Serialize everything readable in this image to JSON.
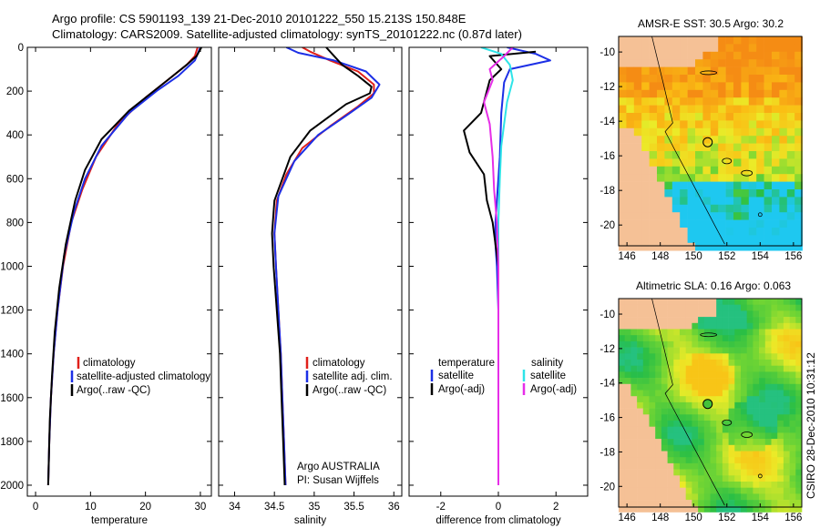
{
  "header": {
    "line1": "Argo profile: CS 5901193_139 21-Dec-2010 20101222_550 15.213S 150.848E",
    "line2": "Climatology: CARS2009. Satellite-adjusted climatology: synTS_20101222.nc (0.87d later)"
  },
  "side_label": "CSIRO 28-Dec-2010 10:31:12",
  "colors": {
    "climatology": "#e0201a",
    "satellite": "#1c2fe6",
    "argo": "#000000",
    "satellite_salinity": "#2ee4e8",
    "argo_adj": "#e62ee8",
    "land": "#f5c196"
  },
  "chart_data": [
    {
      "id": "temperature",
      "type": "line",
      "xlabel": "temperature",
      "ylabel": "",
      "xlim": [
        -1.5,
        32
      ],
      "ylim": [
        2050,
        0
      ],
      "x_ticks": [
        "0",
        "10",
        "20",
        "30"
      ],
      "x_tick_values": [
        0,
        10,
        20,
        30
      ],
      "y_ticks": [
        "0",
        "200",
        "400",
        "600",
        "800",
        "1000",
        "1200",
        "1400",
        "1600",
        "1800",
        "2000"
      ],
      "y_tick_values": [
        0,
        200,
        400,
        600,
        800,
        1000,
        1200,
        1400,
        1600,
        1800,
        2000
      ],
      "legend": [
        "climatology",
        "satellite-adjusted climatology",
        "Argo(..raw -QC)"
      ],
      "series": [
        {
          "name": "climatology",
          "color": "climatology",
          "points": [
            [
              29.5,
              0
            ],
            [
              29,
              40
            ],
            [
              27.5,
              80
            ],
            [
              24,
              150
            ],
            [
              20,
              230
            ],
            [
              15,
              350
            ],
            [
              11,
              500
            ],
            [
              8.5,
              650
            ],
            [
              6.5,
              800
            ],
            [
              5,
              1000
            ],
            [
              4,
              1200
            ],
            [
              3.3,
              1400
            ],
            [
              2.8,
              1600
            ],
            [
              2.5,
              1800
            ],
            [
              2.3,
              2000
            ]
          ]
        },
        {
          "name": "satellite",
          "color": "satellite",
          "points": [
            [
              30,
              0
            ],
            [
              29.5,
              30
            ],
            [
              29,
              60
            ],
            [
              26,
              130
            ],
            [
              22,
              200
            ],
            [
              17,
              300
            ],
            [
              12,
              450
            ],
            [
              9,
              600
            ],
            [
              7,
              750
            ],
            [
              5.2,
              950
            ],
            [
              4,
              1200
            ],
            [
              3.3,
              1400
            ],
            [
              2.8,
              1600
            ],
            [
              2.5,
              1800
            ],
            [
              2.3,
              2000
            ]
          ]
        },
        {
          "name": "argo",
          "color": "argo",
          "points": [
            [
              30.2,
              0
            ],
            [
              29.3,
              40
            ],
            [
              27.5,
              80
            ],
            [
              24,
              150
            ],
            [
              21,
              210
            ],
            [
              17,
              290
            ],
            [
              12,
              420
            ],
            [
              9,
              560
            ],
            [
              7.2,
              700
            ],
            [
              5.5,
              900
            ],
            [
              4.3,
              1100
            ],
            [
              3.5,
              1300
            ],
            [
              3,
              1500
            ],
            [
              2.6,
              1700
            ],
            [
              2.4,
              1900
            ],
            [
              2.3,
              2000
            ]
          ]
        }
      ]
    },
    {
      "id": "salinity",
      "type": "line",
      "xlabel": "salinity",
      "xlim": [
        33.8,
        36.1
      ],
      "ylim": [
        2050,
        0
      ],
      "x_ticks": [
        "34",
        "34.5",
        "35",
        "35.5",
        "36"
      ],
      "x_tick_values": [
        34,
        34.5,
        35,
        35.5,
        36
      ],
      "legend": [
        "climatology",
        "satellite adj. clim.",
        "Argo(..raw -QC)"
      ],
      "annotation": [
        "Argo AUSTRALIA",
        "PI: Susan Wijffels"
      ],
      "series": [
        {
          "name": "climatology",
          "color": "climatology",
          "points": [
            [
              34.85,
              0
            ],
            [
              34.95,
              20
            ],
            [
              35.2,
              60
            ],
            [
              35.55,
              110
            ],
            [
              35.75,
              170
            ],
            [
              35.75,
              210
            ],
            [
              35.55,
              270
            ],
            [
              35.2,
              360
            ],
            [
              34.85,
              460
            ],
            [
              34.65,
              580
            ],
            [
              34.53,
              700
            ],
            [
              34.5,
              850
            ],
            [
              34.52,
              1000
            ],
            [
              34.55,
              1200
            ],
            [
              34.58,
              1400
            ],
            [
              34.6,
              1600
            ],
            [
              34.62,
              1800
            ],
            [
              34.64,
              2000
            ]
          ]
        },
        {
          "name": "satellite",
          "color": "satellite",
          "points": [
            [
              34.65,
              0
            ],
            [
              34.8,
              25
            ],
            [
              35.25,
              60
            ],
            [
              35.65,
              110
            ],
            [
              35.82,
              170
            ],
            [
              35.72,
              230
            ],
            [
              35.45,
              300
            ],
            [
              35.05,
              400
            ],
            [
              34.75,
              520
            ],
            [
              34.55,
              680
            ],
            [
              34.5,
              850
            ],
            [
              34.52,
              1000
            ],
            [
              34.55,
              1200
            ],
            [
              34.58,
              1400
            ],
            [
              34.6,
              1600
            ],
            [
              34.62,
              1800
            ],
            [
              34.64,
              2000
            ]
          ]
        },
        {
          "name": "argo",
          "color": "argo",
          "points": [
            [
              35.15,
              0
            ],
            [
              35.25,
              40
            ],
            [
              35.35,
              80
            ],
            [
              35.55,
              130
            ],
            [
              35.72,
              180
            ],
            [
              35.7,
              210
            ],
            [
              35.4,
              260
            ],
            [
              34.95,
              380
            ],
            [
              34.7,
              500
            ],
            [
              34.5,
              700
            ],
            [
              34.47,
              850
            ],
            [
              34.49,
              1000
            ],
            [
              34.53,
              1200
            ],
            [
              34.57,
              1400
            ],
            [
              34.59,
              1600
            ],
            [
              34.61,
              1800
            ],
            [
              34.63,
              2000
            ]
          ]
        }
      ]
    },
    {
      "id": "difference",
      "type": "line",
      "xlabel": "difference from climatology",
      "xlim": [
        -3.1,
        3.1
      ],
      "ylim": [
        2050,
        0
      ],
      "x_ticks": [
        "-2",
        "0",
        "2"
      ],
      "x_tick_values": [
        -2,
        0,
        2
      ],
      "legend_temperature_header": "temperature",
      "legend_temperature": [
        "satellite",
        "Argo(-adj)"
      ],
      "legend_salinity_header": "salinity",
      "legend_salinity": [
        "satellite",
        "Argo(-adj)"
      ],
      "series": [
        {
          "name": "temperature satellite",
          "color": "satellite",
          "points": [
            [
              0.3,
              0
            ],
            [
              1.3,
              30
            ],
            [
              1.8,
              60
            ],
            [
              0.4,
              100
            ],
            [
              0.2,
              160
            ],
            [
              0.1,
              300
            ],
            [
              0.05,
              500
            ],
            [
              -0.05,
              700
            ],
            [
              -0.1,
              800
            ],
            [
              -0.1,
              900
            ],
            [
              -0.05,
              1000
            ],
            [
              0,
              1200
            ],
            [
              0,
              1600
            ],
            [
              0,
              2000
            ]
          ]
        },
        {
          "name": "temperature argo",
          "color": "argo",
          "points": [
            [
              1.3,
              20
            ],
            [
              -0.3,
              40
            ],
            [
              0.1,
              100
            ],
            [
              -0.3,
              150
            ],
            [
              -0.6,
              300
            ],
            [
              -1.2,
              380
            ],
            [
              -1.0,
              480
            ],
            [
              -0.5,
              580
            ],
            [
              -0.4,
              700
            ],
            [
              -0.2,
              800
            ],
            [
              -0.1,
              900
            ],
            [
              0,
              1000
            ],
            [
              0,
              1200
            ],
            [
              0,
              1600
            ],
            [
              0,
              2000
            ]
          ]
        },
        {
          "name": "salinity satellite",
          "color": "satellite_salinity",
          "points": [
            [
              -0.6,
              0
            ],
            [
              0.1,
              30
            ],
            [
              0.4,
              80
            ],
            [
              0.5,
              150
            ],
            [
              0.3,
              250
            ],
            [
              0.2,
              350
            ],
            [
              0.1,
              450
            ],
            [
              0.05,
              600
            ],
            [
              0,
              800
            ],
            [
              0,
              1000
            ],
            [
              0,
              1400
            ],
            [
              0,
              2000
            ]
          ]
        },
        {
          "name": "salinity argo",
          "color": "argo_adj",
          "points": [
            [
              0.5,
              0
            ],
            [
              0.2,
              40
            ],
            [
              -0.3,
              100
            ],
            [
              -0.2,
              150
            ],
            [
              -0.5,
              250
            ],
            [
              -0.3,
              350
            ],
            [
              -0.2,
              500
            ],
            [
              -0.15,
              650
            ],
            [
              -0.05,
              800
            ],
            [
              0,
              1000
            ],
            [
              0,
              1400
            ],
            [
              0,
              2000
            ]
          ]
        }
      ]
    },
    {
      "id": "sst_map",
      "type": "heatmap",
      "title": "AMSR-E SST: 30.5 Argo: 30.2",
      "xlim": [
        145.5,
        156.5
      ],
      "ylim": [
        -21.2,
        -9.1
      ],
      "x_ticks": [
        "146",
        "148",
        "150",
        "152",
        "154",
        "156"
      ],
      "x_tick_values": [
        146,
        148,
        150,
        152,
        154,
        156
      ],
      "y_ticks": [
        "-10",
        "-12",
        "-14",
        "-16",
        "-18",
        "-20"
      ],
      "y_tick_values": [
        -10,
        -12,
        -14,
        -16,
        -18,
        -20
      ],
      "argo_position": [
        150.848,
        -15.213
      ]
    },
    {
      "id": "sla_map",
      "type": "heatmap",
      "title": "Altimetric SLA: 0.16 Argo: 0.063",
      "xlim": [
        145.5,
        156.5
      ],
      "ylim": [
        -21.2,
        -9.1
      ],
      "x_ticks": [
        "146",
        "148",
        "150",
        "152",
        "154",
        "156"
      ],
      "x_tick_values": [
        146,
        148,
        150,
        152,
        154,
        156
      ],
      "y_ticks": [
        "-10",
        "-12",
        "-14",
        "-16",
        "-18",
        "-20"
      ],
      "y_tick_values": [
        -10,
        -12,
        -14,
        -16,
        -18,
        -20
      ],
      "argo_position": [
        150.848,
        -15.213
      ]
    }
  ]
}
